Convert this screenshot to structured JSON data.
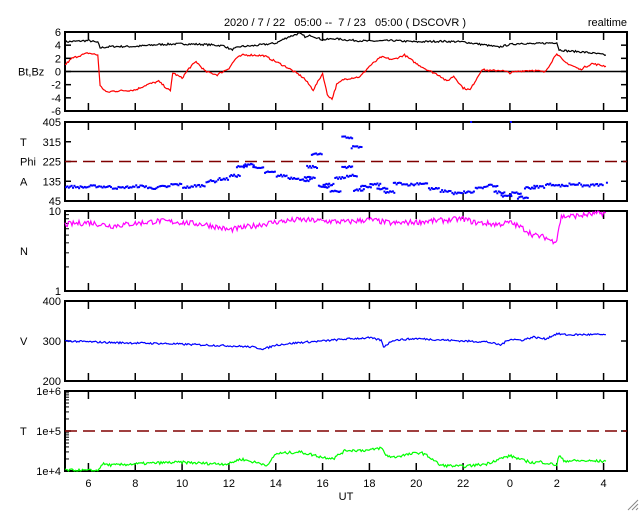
{
  "header": {
    "title": "2020 / 7 / 22   05:00 --  7 / 23   05:00 ( DSCOVR )",
    "mode": "realtime"
  },
  "colors": {
    "bt": "#000000",
    "bz": "#ff0000",
    "phi": "#0000ff",
    "n": "#ff00ff",
    "v": "#0000ff",
    "t": "#00ff00",
    "ref": "#800000"
  },
  "chart_data": {
    "type": "line",
    "xlabel": "UT",
    "x_unit": "hours since 2020/7/22 05:00",
    "xlim": [
      0,
      24
    ],
    "x_ticks": [
      {
        "t": 1,
        "label": "6"
      },
      {
        "t": 3,
        "label": "8"
      },
      {
        "t": 5,
        "label": "10"
      },
      {
        "t": 7,
        "label": "12"
      },
      {
        "t": 9,
        "label": "14"
      },
      {
        "t": 11,
        "label": "16"
      },
      {
        "t": 13,
        "label": "18"
      },
      {
        "t": 15,
        "label": "20"
      },
      {
        "t": 17,
        "label": "22"
      },
      {
        "t": 19,
        "label": "0"
      },
      {
        "t": 21,
        "label": "2"
      },
      {
        "t": 23,
        "label": "4"
      }
    ],
    "panels": [
      {
        "ylabel": "Bt,Bz",
        "scale": "linear",
        "ylim": [
          -6,
          6
        ],
        "ticks": [
          "6",
          "4",
          "2",
          "0",
          "-2",
          "-4",
          "-6"
        ],
        "tick_values": [
          6,
          4,
          2,
          0,
          -2,
          -4,
          -6
        ],
        "zero_line": 0,
        "series": [
          {
            "name": "Bt",
            "color_key": "bt",
            "t": [
              0,
              0.5,
              1,
              1.4,
              1.5,
              2,
              3,
              4,
              5,
              6,
              6.8,
              7.1,
              7.5,
              8,
              9,
              9.5,
              10,
              10.3,
              10.5,
              11,
              11.5,
              12,
              13,
              14,
              15,
              16,
              17,
              18,
              18.5,
              19,
              19.5,
              20,
              21,
              21.1,
              21.5,
              22,
              22.5,
              23.1
            ],
            "y": [
              4.5,
              4.6,
              4.7,
              4.4,
              3.6,
              3.8,
              3.8,
              4.1,
              4.2,
              4.1,
              3.9,
              3.3,
              3.8,
              3.9,
              4.3,
              5.2,
              5.8,
              5.2,
              5.5,
              4.8,
              5.0,
              4.8,
              4.6,
              4.7,
              4.5,
              4.6,
              4.5,
              4.0,
              3.7,
              4.1,
              4.3,
              4.2,
              4.4,
              3.3,
              3.1,
              3.0,
              2.8,
              2.5
            ]
          },
          {
            "name": "Bz",
            "color_key": "bz",
            "t": [
              0,
              0.3,
              0.7,
              1,
              1.4,
              1.5,
              1.8,
              2,
              3,
              3.5,
              4,
              4.5,
              4.6,
              5,
              5.3,
              5.6,
              6,
              6.5,
              7,
              7.3,
              7.6,
              8,
              8.5,
              9,
              9.5,
              10,
              10.2,
              10.6,
              11,
              11.2,
              11.4,
              11.6,
              11.9,
              12.2,
              12.6,
              13,
              13.5,
              14,
              14.5,
              15,
              15.5,
              16,
              16.3,
              16.6,
              17,
              17.3,
              17.8,
              18.2,
              18.6,
              19,
              19.5,
              20,
              20.5,
              20.9,
              21,
              21.3,
              22,
              22.5,
              23.1
            ],
            "y": [
              1,
              2,
              2.5,
              2.8,
              2.5,
              -2.2,
              -3.2,
              -3,
              -2.8,
              -2,
              -1.5,
              -3,
              -0.2,
              -1,
              0.5,
              1.5,
              0,
              -0.5,
              0.5,
              2,
              2.5,
              2.5,
              2.4,
              1.5,
              0.6,
              -0.5,
              -1,
              -2.8,
              -0.3,
              -3.5,
              -4.2,
              -2,
              -1.2,
              -1,
              -0.8,
              0.8,
              2.2,
              1.8,
              2.5,
              1.2,
              0.2,
              -0.6,
              -1.5,
              -0.7,
              -2.5,
              -2.8,
              0.3,
              0.1,
              0.2,
              -0.2,
              0.1,
              0.2,
              -0.1,
              2.2,
              2.8,
              1.5,
              0.3,
              1.2,
              0.8
            ]
          }
        ]
      },
      {
        "ylabel_lines": [
          "T",
          "Phi",
          "A"
        ],
        "scale": "linear",
        "ylim": [
          45,
          405
        ],
        "ticks": [
          "405",
          "315",
          "225",
          "135",
          "45"
        ],
        "tick_values": [
          405,
          315,
          225,
          135,
          45
        ],
        "ref_line": 225,
        "series": [
          {
            "name": "Phi",
            "color_key": "phi",
            "style": "dots",
            "t": [
              0,
              0.5,
              1,
              1.5,
              2,
              2.5,
              3,
              3.5,
              4,
              4.5,
              5,
              5.5,
              6,
              6.5,
              7,
              7.3,
              7.6,
              8,
              8.5,
              9,
              9.5,
              10,
              10.2,
              10.3,
              10.5,
              10.8,
              11,
              11.3,
              11.5,
              11.8,
              12,
              12.3,
              12.6,
              13,
              13.3,
              13.6,
              14,
              14.5,
              15,
              15.5,
              16,
              16.5,
              17,
              17.5,
              18,
              18.3,
              18.6,
              19,
              19.3,
              19.6,
              20,
              20.5,
              21,
              21.5,
              22,
              22.5,
              23.1,
              17.3,
              19,
              11.8,
              12.2
            ],
            "y": [
              110,
              108,
              112,
              110,
              105,
              108,
              112,
              104,
              110,
              120,
              108,
              115,
              135,
              145,
              160,
              200,
              212,
              195,
              175,
              160,
              150,
              140,
              150,
              200,
              258,
              110,
              120,
              90,
              150,
              200,
              160,
              95,
              110,
              120,
              100,
              85,
              125,
              120,
              125,
              100,
              90,
              80,
              85,
              105,
              115,
              85,
              70,
              80,
              60,
              105,
              110,
              120,
              115,
              122,
              115,
              118,
              130,
              405,
              405,
              335,
              290
            ]
          }
        ]
      },
      {
        "ylabel": "N",
        "scale": "log",
        "ylim": [
          1,
          10
        ],
        "ticks": [
          "10",
          "1"
        ],
        "tick_values": [
          10,
          1
        ],
        "series": [
          {
            "name": "N",
            "color_key": "n",
            "t": [
              0,
              1,
              2,
              3,
              4,
              5,
              6,
              7,
              8,
              9,
              10,
              11,
              12,
              13,
              14,
              15,
              16,
              17,
              17.5,
              18,
              18.5,
              19,
              19.5,
              20,
              20.5,
              20.8,
              21,
              21.2,
              22,
              23.1
            ],
            "y": [
              6.8,
              7.2,
              6.5,
              7.0,
              7.5,
              7.2,
              6.8,
              5.8,
              6.5,
              7.3,
              7.8,
              7.5,
              7.3,
              7.8,
              7.0,
              7.3,
              7.6,
              8.0,
              7.2,
              7.0,
              6.8,
              7.2,
              6.2,
              5.0,
              4.7,
              4.2,
              4.4,
              8.5,
              8.8,
              9.5
            ]
          }
        ]
      },
      {
        "ylabel": "V",
        "scale": "linear",
        "ylim": [
          200,
          400
        ],
        "ticks": [
          "400",
          "300",
          "200"
        ],
        "tick_values": [
          400,
          300,
          200
        ],
        "series": [
          {
            "name": "V",
            "color_key": "v",
            "t": [
              0,
              1,
              2,
              3,
              4,
              5,
              6,
              7,
              8,
              8.5,
              9,
              10,
              11,
              12,
              13,
              13.5,
              13.6,
              14,
              15,
              16,
              17,
              18,
              18.6,
              19,
              19.5,
              20,
              20.5,
              21,
              21.5,
              22,
              23.1
            ],
            "y": [
              300,
              298,
              296,
              295,
              294,
              292,
              290,
              288,
              285,
              280,
              290,
              296,
              300,
              305,
              308,
              302,
              285,
              302,
              306,
              303,
              300,
              298,
              290,
              305,
              302,
              310,
              305,
              318,
              315,
              316,
              316
            ]
          }
        ]
      },
      {
        "ylabel": "T",
        "scale": "log",
        "ylim": [
          10000,
          1000000
        ],
        "ticks": [
          "1e+6",
          "1e+5",
          "1e+4"
        ],
        "tick_values": [
          1000000,
          100000,
          10000
        ],
        "ref_line": 100000,
        "series": [
          {
            "name": "T",
            "color_key": "t",
            "t": [
              0,
              1.3,
              1.4,
              1.6,
              2,
              3,
              4,
              5,
              6,
              7,
              7.5,
              8,
              8.7,
              9,
              10,
              11,
              11.5,
              12,
              13,
              13.5,
              13.7,
              14,
              15,
              15.2,
              16,
              17,
              18,
              19,
              19.5,
              20,
              20.3,
              21,
              21.1,
              21.3,
              22,
              23.1
            ],
            "y": [
              10500,
              10200,
              10200,
              15000,
              14000,
              15000,
              16000,
              16500,
              15500,
              15000,
              20000,
              17000,
              14000,
              27000,
              30000,
              22000,
              21000,
              33000,
              33000,
              38000,
              25000,
              22000,
              28000,
              29000,
              14000,
              13000,
              15000,
              24000,
              19000,
              16000,
              17000,
              14000,
              24000,
              18000,
              18000,
              17500
            ]
          }
        ]
      }
    ]
  }
}
